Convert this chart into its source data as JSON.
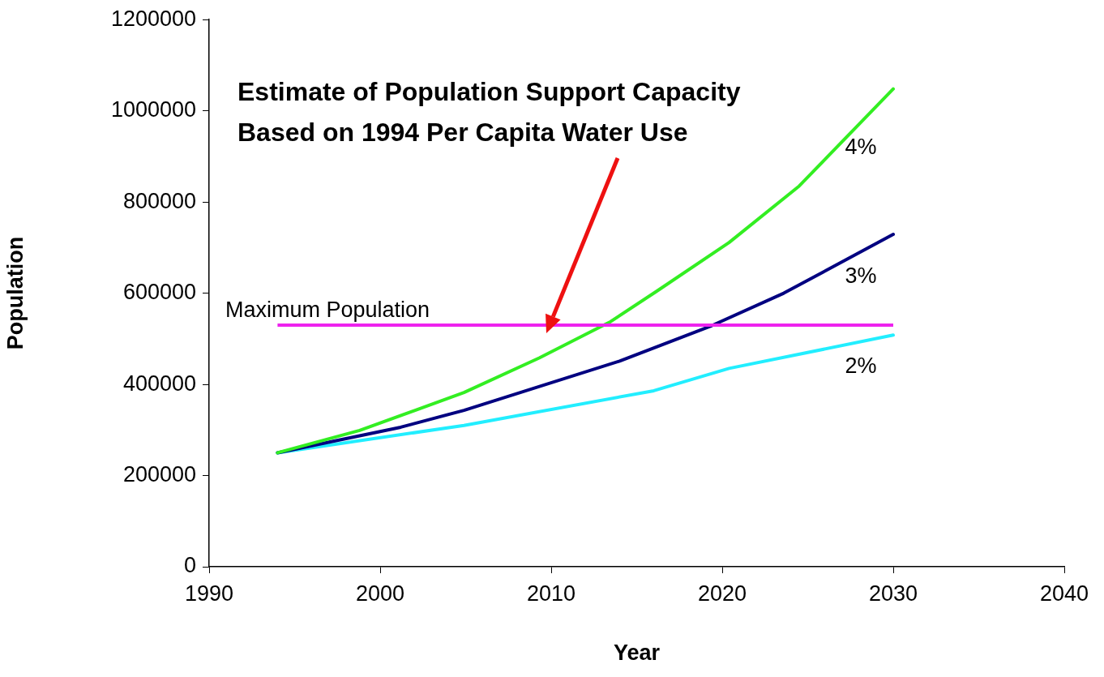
{
  "chart_data": {
    "type": "line",
    "xlabel": "Year",
    "ylabel": "Population",
    "xlim": [
      1990,
      2040
    ],
    "xticks": [
      1990,
      2000,
      2010,
      2020,
      2030,
      2040
    ],
    "ylim": [
      0,
      1200000
    ],
    "yticks": [
      0,
      200000,
      400000,
      600000,
      800000,
      1000000,
      1200000
    ],
    "grid": false,
    "legend": false,
    "marker": "none",
    "line_style": "solid",
    "series": [
      {
        "name": "4%",
        "color": "#33ee22",
        "x": [
          1994,
          1998.8,
          2004.9,
          2009.3,
          2013.4,
          2016.2,
          2020.4,
          2024.5,
          2030
        ],
        "values": [
          250000,
          299000,
          382000,
          458000,
          536000,
          605000,
          711000,
          835000,
          1048000
        ]
      },
      {
        "name": "3%",
        "color": "#000080",
        "x": [
          1994,
          2001.2,
          2004.9,
          2014,
          2019.4,
          2023.6,
          2030
        ],
        "values": [
          250000,
          306000,
          343000,
          451000,
          529000,
          600000,
          729000
        ]
      },
      {
        "name": "2%",
        "color": "#22eeff",
        "x": [
          1994,
          2004.9,
          2016,
          2020.4,
          2030
        ],
        "values": [
          250000,
          310000,
          386000,
          435000,
          508000
        ]
      }
    ],
    "ref_lines": [
      {
        "axis": "y",
        "value": 530000,
        "label": "Maximum Population",
        "color": "#ee22ee"
      }
    ],
    "annotations": [
      "Estimate of Population Support Capacity Based on 1994 Per Capita Water Use"
    ]
  }
}
